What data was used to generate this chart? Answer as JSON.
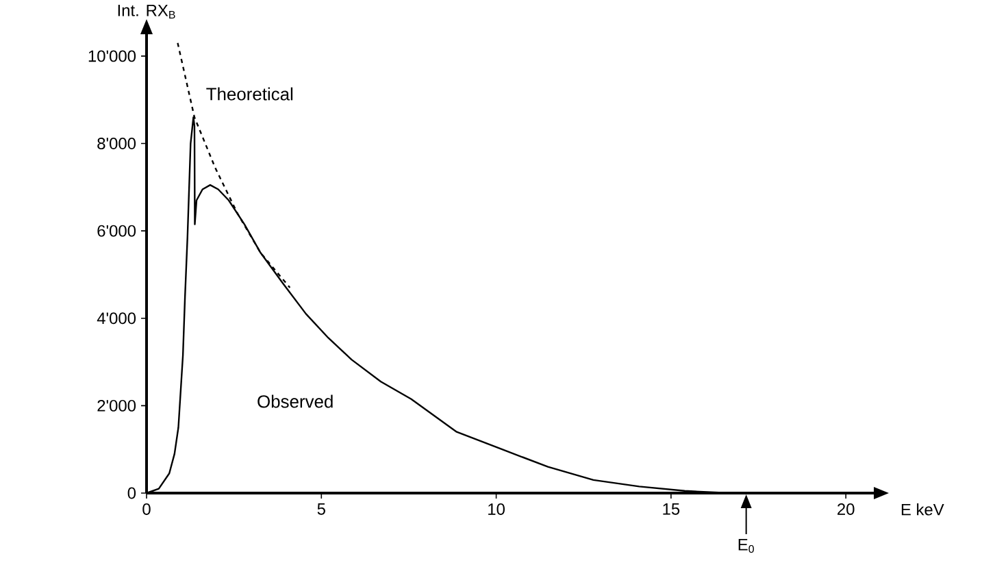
{
  "chart_data": {
    "type": "line",
    "xlabel": "E keV",
    "ylabel": "Int. RX$_{B}$",
    "xlim": [
      0,
      20.8
    ],
    "ylim": [
      0,
      10500
    ],
    "xticks": [
      0,
      5,
      10,
      15,
      20
    ],
    "yticks": [
      0,
      {
        "value": 2000,
        "label": "2'000"
      },
      {
        "value": 4000,
        "label": "4'000"
      },
      {
        "value": 6000,
        "label": "6'000"
      },
      {
        "value": 8000,
        "label": "8'000"
      },
      {
        "value": 10000,
        "label": "10'000"
      }
    ],
    "grid": false,
    "marker": "none",
    "annotations": [
      {
        "text": "E$_{0}$",
        "x": 17.15,
        "y": 0
      }
    ],
    "series": [
      {
        "name": "Theoretical",
        "color": "#000000",
        "line_style": "dashed",
        "x": [
          0.89,
          1.37,
          1.96,
          2.6,
          3.26,
          4.1
        ],
        "values": [
          10300,
          8600,
          7450,
          6400,
          5500,
          4700
        ]
      },
      {
        "name": "Observed",
        "color": "#000000",
        "line_style": "solid",
        "x": [
          0,
          0.35,
          0.65,
          0.8,
          0.91,
          1.04,
          1.1,
          1.17,
          1.26,
          1.34,
          1.37,
          1.38,
          1.43,
          1.6,
          1.82,
          2.05,
          2.35,
          2.8,
          3.26,
          3.9,
          4.56,
          5.2,
          5.87,
          6.7,
          7.57,
          8.87,
          10.17,
          11.48,
          12.78,
          14.09,
          15.39,
          16.7,
          17.15
        ],
        "values": [
          0,
          100,
          450,
          900,
          1500,
          3150,
          4500,
          5850,
          8000,
          8600,
          8400,
          6150,
          6700,
          6950,
          7050,
          6950,
          6700,
          6150,
          5500,
          4800,
          4100,
          3550,
          3050,
          2550,
          2150,
          1400,
          1000,
          600,
          300,
          150,
          50,
          0,
          0
        ]
      }
    ]
  }
}
